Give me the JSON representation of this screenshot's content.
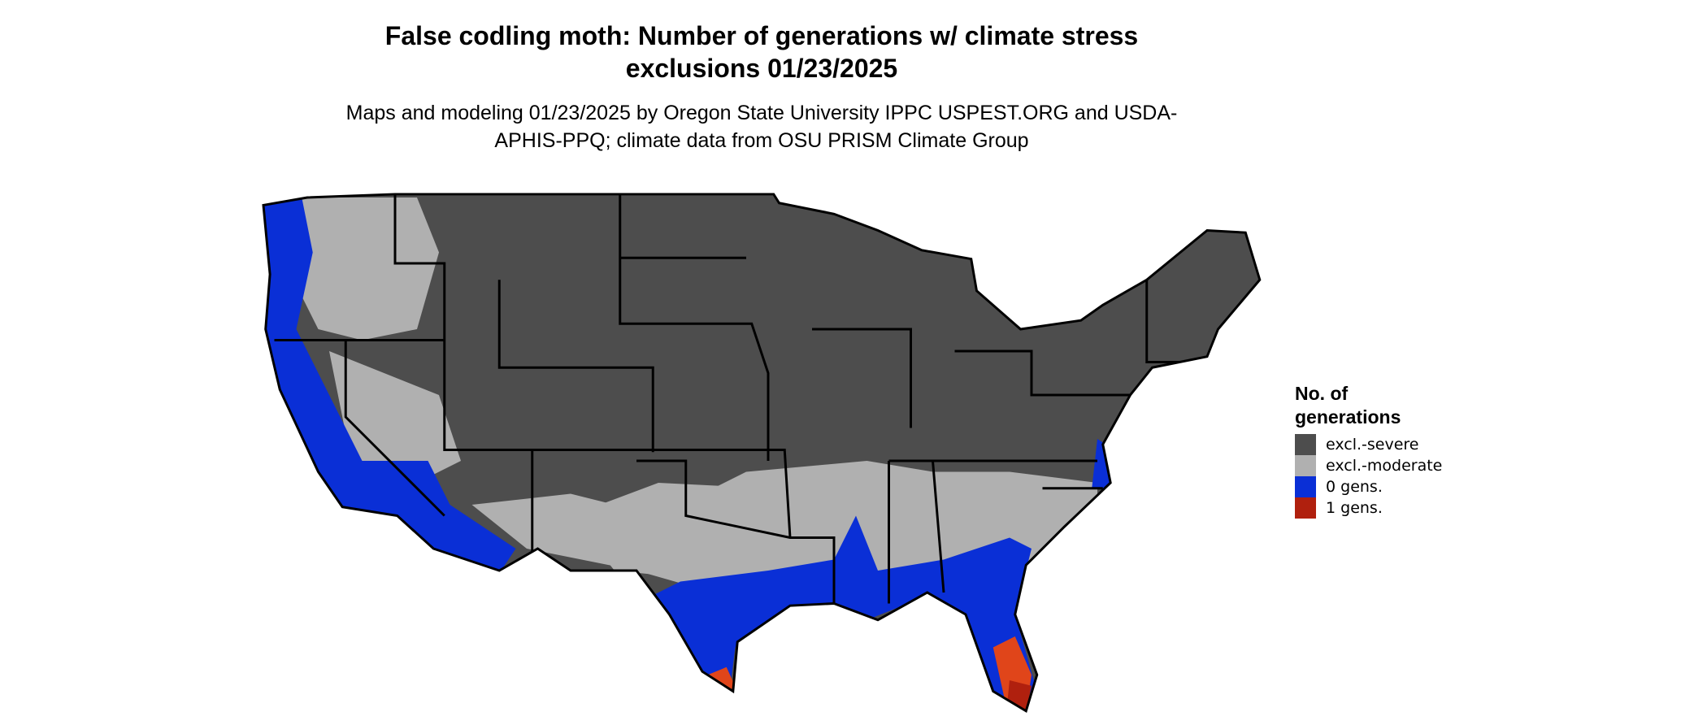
{
  "title": "False codling moth: Number of generations w/ climate stress exclusions 01/23/2025",
  "subtitle": "Maps and modeling 01/23/2025 by Oregon State University IPPC USPEST.ORG and USDA-APHIS-PPQ; climate data from OSU PRISM Climate Group",
  "legend": {
    "title": "No. of generations",
    "items": [
      {
        "label": "excl.-severe",
        "color": "#4d4d4d"
      },
      {
        "label": "excl.-moderate",
        "color": "#b0b0b0"
      },
      {
        "label": "0 gens.",
        "color": "#0a2fd6"
      },
      {
        "label": "1 gens.",
        "color": "#b0200e"
      }
    ]
  }
}
